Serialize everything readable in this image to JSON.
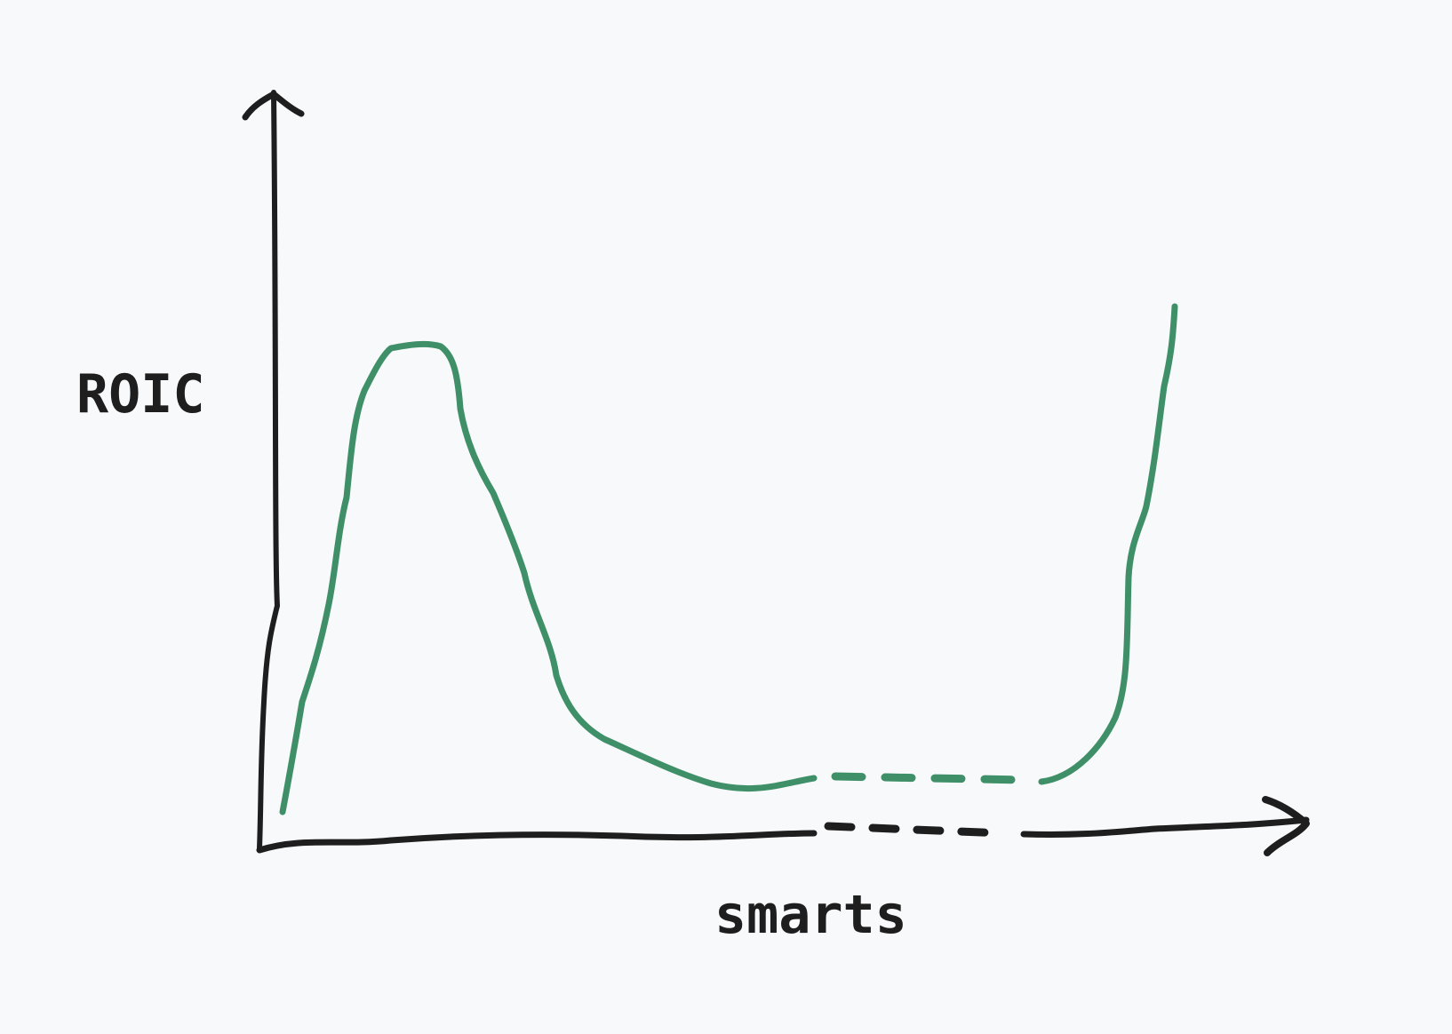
{
  "labels": {
    "y_axis": "ROIC",
    "x_axis": "smarts"
  },
  "colors": {
    "background": "#f8f9fb",
    "axis": "#1e1e1e",
    "curve": "#3f9068"
  }
}
